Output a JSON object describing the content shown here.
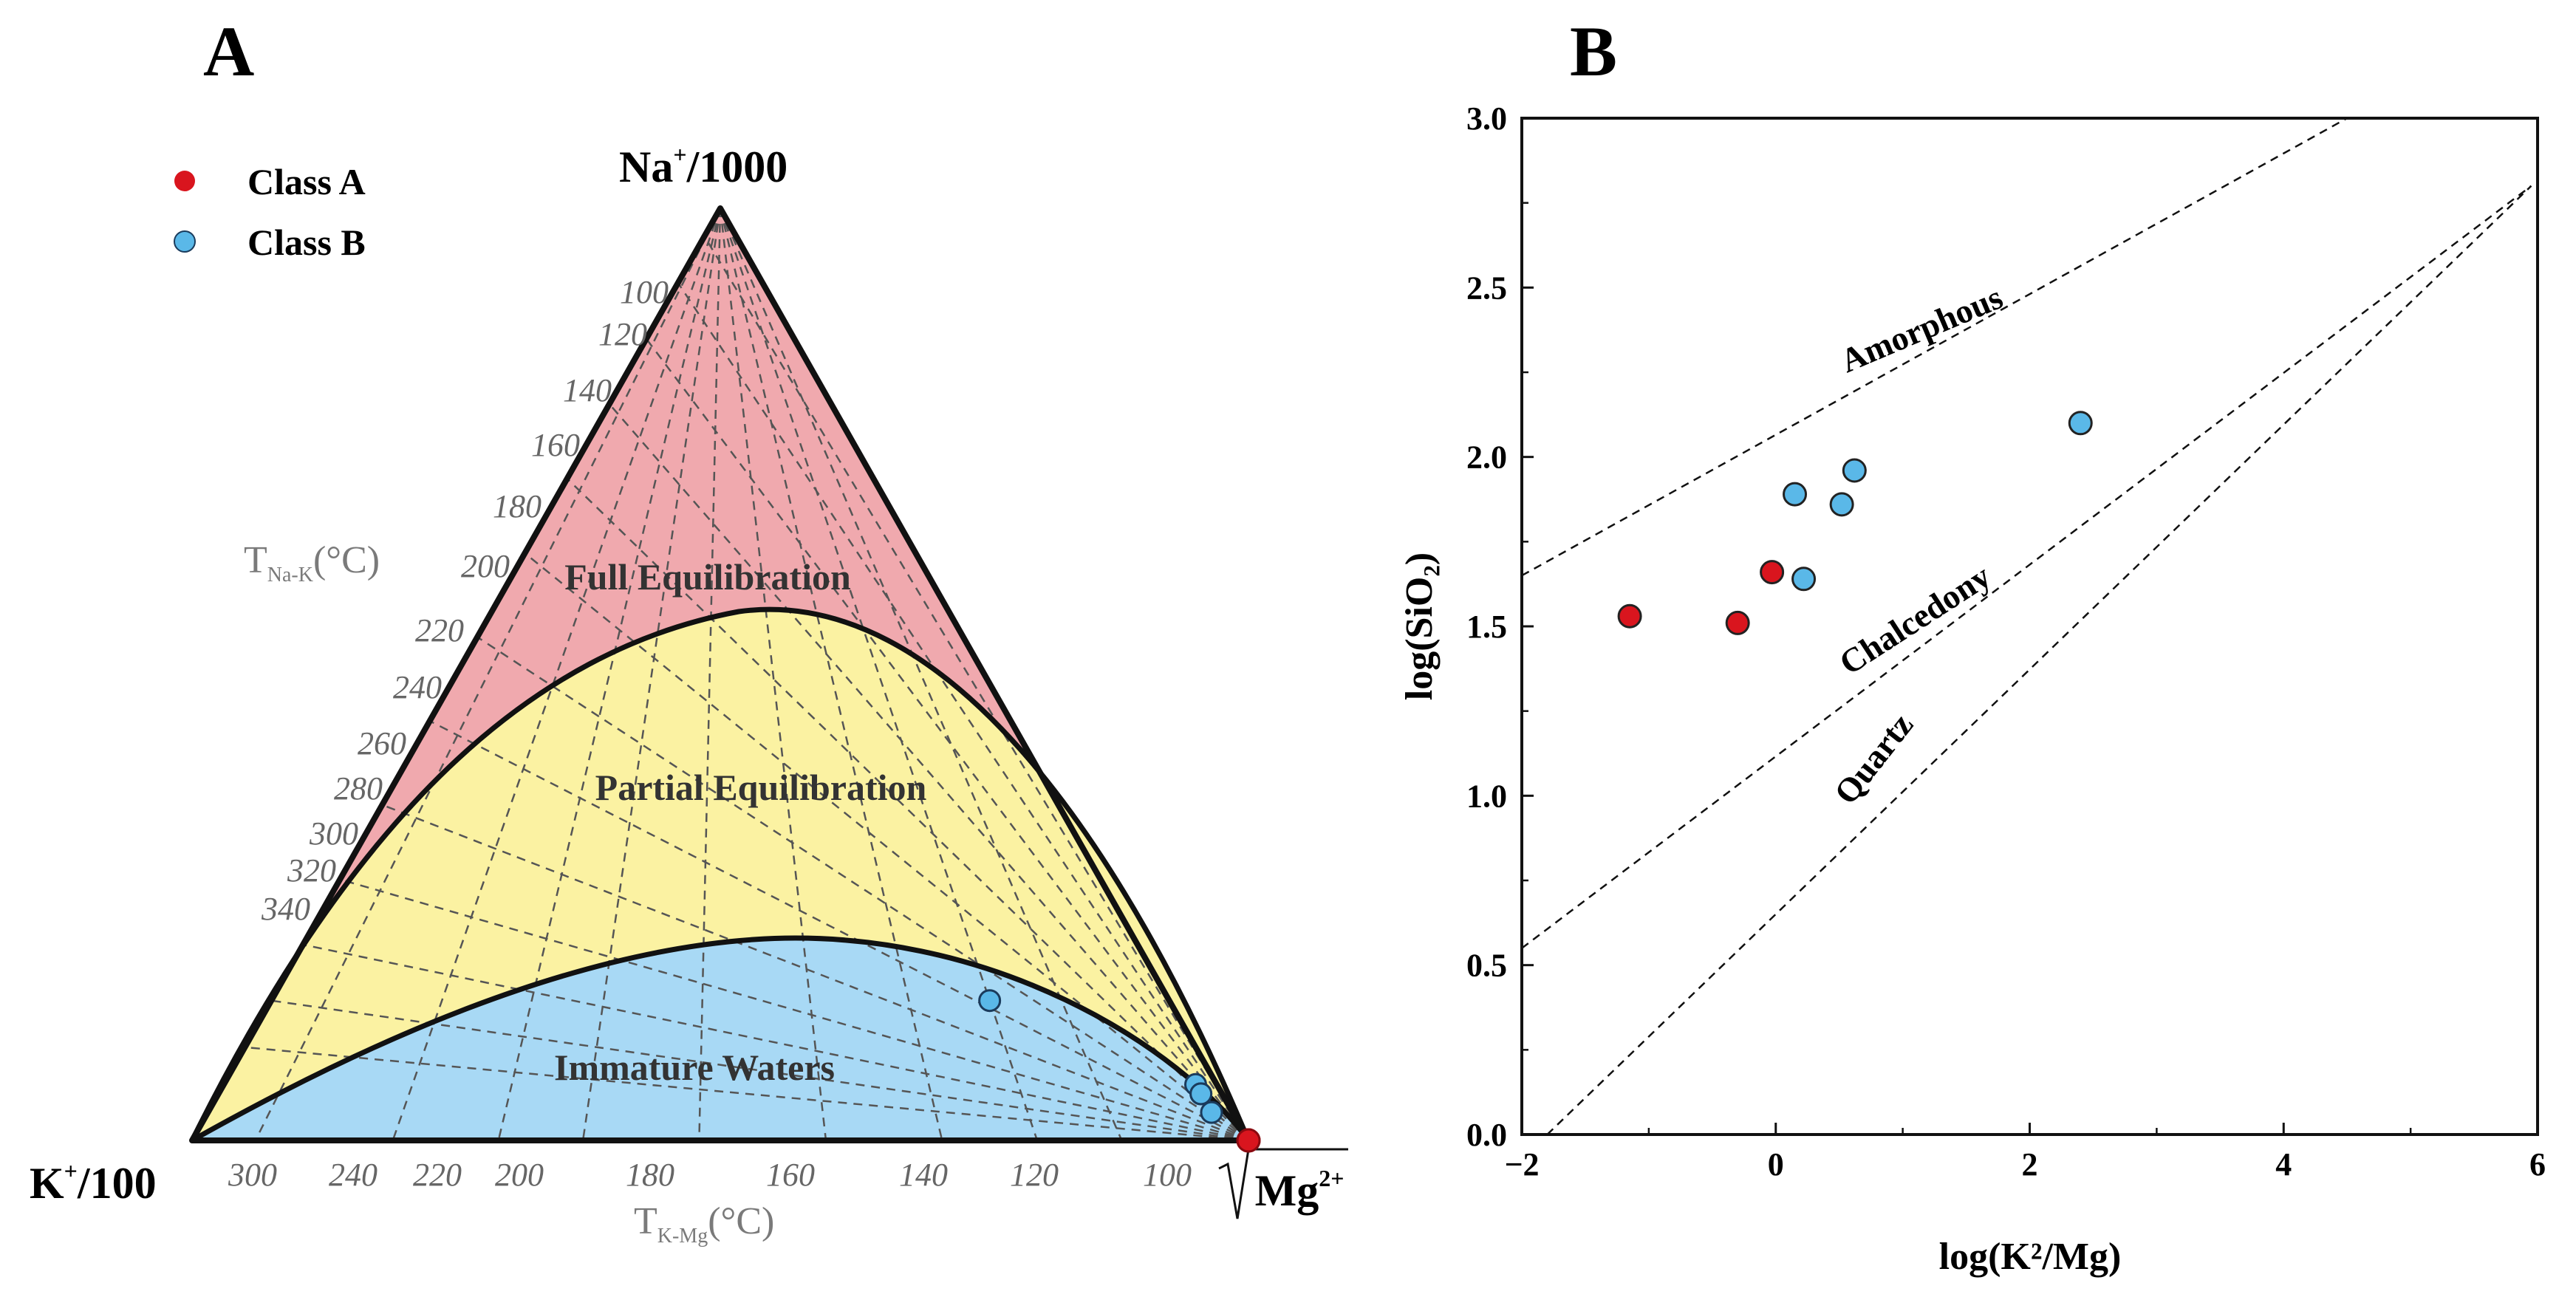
{
  "colors": {
    "full_fill": "#f0a9ae",
    "partial_fill": "#fbf2a2",
    "immature_fill": "#a8d9f5",
    "class_a": "#d9151e",
    "class_b": "#5ab8e8",
    "gray_text": "#7a7a7a"
  },
  "panel_a": {
    "letter": "A",
    "legend": [
      {
        "label": "Class A",
        "color": "#d9151e"
      },
      {
        "label": "Class B",
        "color": "#5ab8e8"
      }
    ],
    "apex_labels": {
      "top": "Na",
      "top_sup": "+",
      "top_suffix": "/1000",
      "left": "K",
      "left_sup": "+",
      "left_suffix": "/100",
      "right_prefix": "√",
      "right": "Mg",
      "right_sup": "2+"
    },
    "region_labels": {
      "full": "Full Equilibration",
      "partial": "Partial Equilibration",
      "immature": "Immature Waters"
    },
    "na_k_axis": {
      "title_main": "T",
      "title_sub": "Na-K",
      "title_unit": "(°C)",
      "ticks": [
        "100",
        "120",
        "140",
        "160",
        "180",
        "200",
        "220",
        "240",
        "260",
        "280",
        "300",
        "320",
        "340"
      ]
    },
    "k_mg_axis": {
      "title_main": "T",
      "title_sub": "K-Mg",
      "title_unit": "(°C)",
      "ticks": [
        "300",
        "240",
        "220",
        "200",
        "180",
        "160",
        "140",
        "120",
        "100"
      ]
    },
    "chart_data": {
      "type": "ternary",
      "components": [
        "Na+/1000",
        "K+/100",
        "√Mg2+"
      ],
      "regions": [
        "Full Equilibration",
        "Partial Equilibration",
        "Immature Waters"
      ],
      "series": [
        {
          "name": "Class A",
          "points": [
            {
              "na": 0.0,
              "k": 0.0,
              "mg": 1.0
            },
            {
              "na": 0.0,
              "k": 0.0,
              "mg": 1.0
            }
          ]
        },
        {
          "name": "Class B",
          "points": [
            {
              "na": 0.15,
              "k": 0.17,
              "mg": 0.68
            },
            {
              "na": 0.06,
              "k": 0.02,
              "mg": 0.92
            },
            {
              "na": 0.05,
              "k": 0.02,
              "mg": 0.93
            },
            {
              "na": 0.05,
              "k": 0.02,
              "mg": 0.93
            },
            {
              "na": 0.03,
              "k": 0.02,
              "mg": 0.95
            }
          ]
        }
      ]
    }
  },
  "panel_b": {
    "letter": "B",
    "line_labels": [
      "Amorphous",
      "Chalcedony",
      "Quartz"
    ],
    "chart_data": {
      "type": "scatter",
      "xlabel": "log(K²/Mg)",
      "ylabel": "log(SiO₂)",
      "xlim": [
        -2,
        6
      ],
      "ylim": [
        0.0,
        3.0
      ],
      "xticks": [
        "−2",
        "0",
        "2",
        "4",
        "6"
      ],
      "yticks": [
        "0.0",
        "0.5",
        "1.0",
        "1.5",
        "2.0",
        "2.5",
        "3.0"
      ],
      "lines": [
        {
          "name": "Amorphous",
          "points": [
            [
              -2,
              1.65
            ],
            [
              4.5,
              3.0
            ]
          ]
        },
        {
          "name": "Chalcedony",
          "points": [
            [
              -2,
              0.55
            ],
            [
              5.95,
              2.8
            ]
          ]
        },
        {
          "name": "Quartz",
          "points": [
            [
              -1.8,
              0.0
            ],
            [
              5.95,
              2.8
            ]
          ]
        }
      ],
      "series": [
        {
          "name": "Class A",
          "points": [
            [
              -1.15,
              1.53
            ],
            [
              -0.3,
              1.51
            ],
            [
              -0.03,
              1.66
            ]
          ]
        },
        {
          "name": "Class B",
          "points": [
            [
              0.15,
              1.89
            ],
            [
              0.22,
              1.64
            ],
            [
              0.52,
              1.86
            ],
            [
              0.62,
              1.96
            ],
            [
              2.4,
              2.1
            ]
          ]
        }
      ]
    }
  }
}
